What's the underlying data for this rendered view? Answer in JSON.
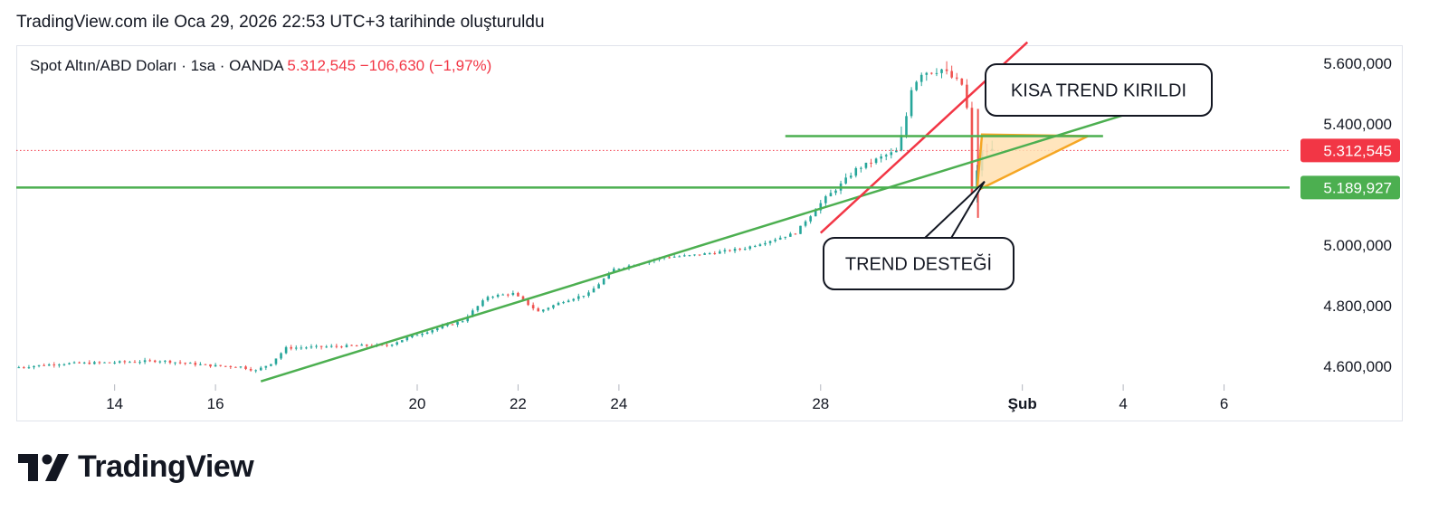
{
  "caption": "TradingView.com ile Oca 29, 2026 22:53 UTC+3 tarihinde oluşturuldu",
  "brand": {
    "name": "TradingView",
    "logo_icon": "tradingview-logo-icon"
  },
  "colors": {
    "up": "#26a69a",
    "down": "#ef5350",
    "support": "#4caf50",
    "trend_break": "#f23645",
    "triangle_border": "#f5a623",
    "triangle_fill": "#ffe0b2",
    "price_badge": "#f23645",
    "support_badge": "#4caf50"
  },
  "chart_data": {
    "type": "candlestick",
    "symbol": {
      "name": "Spot Altın/ABD Doları",
      "interval": "1sa",
      "exchange": "OANDA",
      "separator": "·",
      "price": "5.312,545",
      "change": "−106,630",
      "change_pct": "(−1,97%)"
    },
    "x_axis": {
      "ticks": [
        {
          "label": "14",
          "day": 14
        },
        {
          "label": "16",
          "day": 16
        },
        {
          "label": "20",
          "day": 20
        },
        {
          "label": "22",
          "day": 22
        },
        {
          "label": "24",
          "day": 24
        },
        {
          "label": "28",
          "day": 28
        },
        {
          "label": "Şub",
          "day": 32
        },
        {
          "label": "4",
          "day": 34
        },
        {
          "label": "6",
          "day": 36
        }
      ],
      "range": [
        12.05,
        37.3
      ]
    },
    "y_axis": {
      "ticks": [
        {
          "label": "5.600,000",
          "value": 5600
        },
        {
          "label": "5.400,000",
          "value": 5400
        },
        {
          "label": "5.000,000",
          "value": 5000
        },
        {
          "label": "4.800,000",
          "value": 4800
        },
        {
          "label": "4.600,000",
          "value": 4600
        }
      ],
      "range": [
        4540,
        5660
      ]
    },
    "price_path": [
      [
        12.1,
        4595
      ],
      [
        13,
        4608
      ],
      [
        14,
        4612
      ],
      [
        15,
        4618
      ],
      [
        16,
        4602
      ],
      [
        16.6,
        4598
      ],
      [
        16.9,
        4585
      ],
      [
        17.2,
        4610
      ],
      [
        17.5,
        4660
      ],
      [
        19,
        4668
      ],
      [
        19.5,
        4668
      ],
      [
        20,
        4700
      ],
      [
        21,
        4750
      ],
      [
        21.5,
        4830
      ],
      [
        22,
        4840
      ],
      [
        22.5,
        4780
      ],
      [
        23,
        4815
      ],
      [
        23.5,
        4840
      ],
      [
        24,
        4920
      ],
      [
        24.5,
        4940
      ],
      [
        25,
        4960
      ],
      [
        25.5,
        4965
      ],
      [
        26,
        4975
      ],
      [
        26.6,
        4990
      ],
      [
        27.6,
        5040
      ],
      [
        28,
        5120
      ],
      [
        28.2,
        5155
      ],
      [
        28.5,
        5200
      ],
      [
        28.8,
        5250
      ],
      [
        29.3,
        5290
      ],
      [
        29.6,
        5310
      ],
      [
        29.75,
        5380
      ],
      [
        29.9,
        5520
      ],
      [
        30.1,
        5570
      ],
      [
        30.5,
        5580
      ],
      [
        30.8,
        5540
      ],
      [
        30.9,
        5530
      ],
      [
        31.0,
        5450
      ],
      [
        31.1,
        5150
      ],
      [
        31.25,
        5300
      ],
      [
        31.4,
        5312.545
      ]
    ],
    "lines": [
      {
        "name": "support-trendline",
        "color": "#4caf50",
        "from": [
          16.9,
          4550
        ],
        "to": [
          34.8,
          5470
        ]
      },
      {
        "name": "short-trendline",
        "color": "#f23645",
        "from": [
          28,
          5040
        ],
        "to": [
          32.1,
          5670
        ]
      },
      {
        "name": "horizontal-resistance",
        "color": "#4caf50",
        "from": [
          27.3,
          5360
        ],
        "to": [
          33.6,
          5360
        ]
      },
      {
        "name": "horizontal-support",
        "color": "#4caf50",
        "from": [
          12.05,
          5189.927
        ],
        "to": [
          37.3,
          5189.927
        ]
      }
    ],
    "triangle": [
      [
        31.1,
        5180
      ],
      [
        31.2,
        5365
      ],
      [
        33.3,
        5360
      ]
    ],
    "current_price_line": {
      "value": 5312.545,
      "label": "5.312,545"
    },
    "support_level": {
      "value": 5189.927,
      "label": "5.189,927"
    },
    "annotations": [
      {
        "text": "KISA TREND KIRILDI",
        "pointer_to": [
          31.6,
          5460
        ]
      },
      {
        "text": "TREND DESTEĞİ",
        "pointer_to": [
          31.25,
          5210
        ]
      }
    ]
  }
}
